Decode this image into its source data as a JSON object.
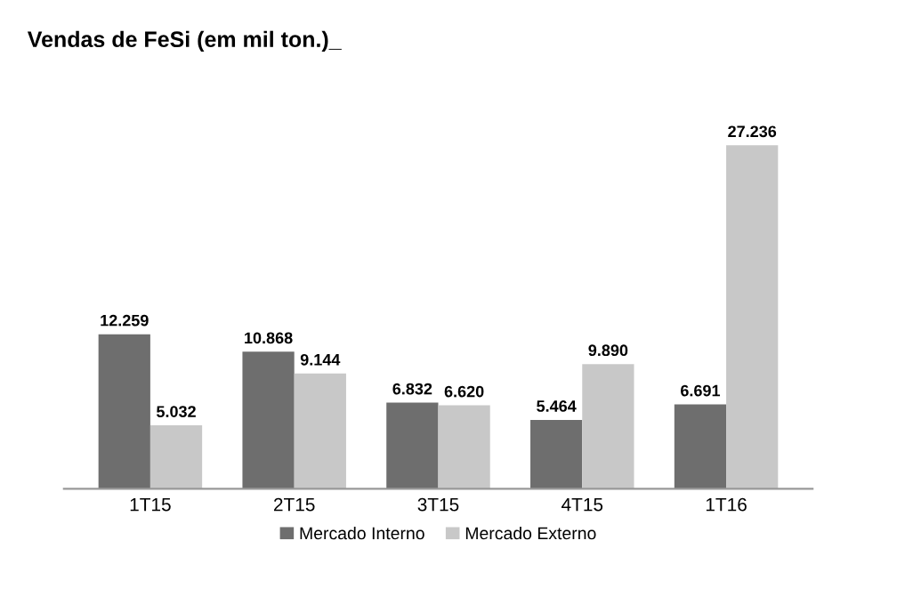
{
  "chart_data": {
    "type": "bar",
    "title": "Vendas de FeSi (em mil ton.)_",
    "categories": [
      "1T15",
      "2T15",
      "3T15",
      "4T15",
      "1T16"
    ],
    "series": [
      {
        "name": "Mercado Interno",
        "color": "#6e6e6e",
        "values": [
          12.259,
          10.868,
          6.832,
          5.464,
          6.691
        ],
        "value_labels": [
          "12.259",
          "10.868",
          "6.832",
          "5.464",
          "6.691"
        ]
      },
      {
        "name": "Mercado Externo",
        "color": "#c8c8c8",
        "values": [
          5.032,
          9.144,
          6.62,
          9.89,
          27.236
        ],
        "value_labels": [
          "5.032",
          "9.144",
          "6.620",
          "9.890",
          "27.236"
        ]
      }
    ],
    "legend": "bottom",
    "grid": false
  }
}
